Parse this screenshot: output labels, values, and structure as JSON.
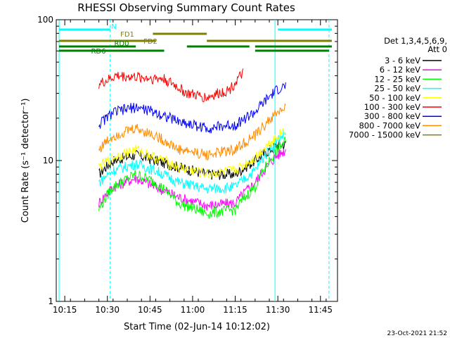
{
  "chart_data": {
    "type": "line",
    "title": "RHESSI Observing Summary Count Rates",
    "xlabel": "Start Time (02-Jun-14 10:12:02)",
    "ylabel": "Count Rate (s⁻¹ detector⁻¹)",
    "yscale": "log",
    "ylim": [
      1,
      100
    ],
    "xlim": [
      "10:12",
      "11:51"
    ],
    "x_ticks": [
      "10:15",
      "10:30",
      "10:45",
      "11:00",
      "11:15",
      "11:30",
      "11:45"
    ],
    "y_ticks": [
      "1",
      "10",
      "100"
    ],
    "legend_header": [
      "Det 1,3,4,5,6,9,",
      "Att 0"
    ],
    "legend_position": "right",
    "series": [
      {
        "name": "3 - 6 keV",
        "color": "#000000",
        "x": [
          "10:27",
          "10:32",
          "10:40",
          "10:47",
          "10:55",
          "11:05",
          "11:15",
          "11:22",
          "11:30",
          "11:33"
        ],
        "y": [
          8,
          10,
          11,
          10,
          9,
          8,
          8,
          10,
          13,
          13
        ]
      },
      {
        "name": "6 - 12 keV",
        "color": "#ff00ff",
        "x": [
          "10:27",
          "10:32",
          "10:40",
          "10:47",
          "10:55",
          "11:05",
          "11:15",
          "11:22",
          "11:30",
          "11:33"
        ],
        "y": [
          5,
          6.5,
          7.5,
          6.5,
          5.5,
          4.8,
          5,
          7,
          11,
          12
        ]
      },
      {
        "name": "12 - 25 keV",
        "color": "#00ff00",
        "x": [
          "10:27",
          "10:32",
          "10:40",
          "10:47",
          "10:55",
          "11:05",
          "11:15",
          "11:22",
          "11:30",
          "11:33"
        ],
        "y": [
          4.5,
          6.5,
          8,
          7,
          5,
          4.2,
          4.5,
          6.5,
          12,
          14
        ]
      },
      {
        "name": "25 - 50 keV",
        "color": "#00ffff",
        "x": [
          "10:27",
          "10:32",
          "10:40",
          "10:47",
          "10:55",
          "11:05",
          "11:15",
          "11:22",
          "11:30",
          "11:33"
        ],
        "y": [
          7,
          8.5,
          9.5,
          8.5,
          7,
          6.3,
          6.5,
          8.5,
          14,
          16
        ]
      },
      {
        "name": "50 - 100 keV",
        "color": "#ffff00",
        "x": [
          "10:27",
          "10:32",
          "10:40",
          "10:47",
          "10:55",
          "11:05",
          "11:15",
          "11:22",
          "11:30",
          "11:33"
        ],
        "y": [
          9,
          10.5,
          12,
          10.5,
          9,
          8,
          8.5,
          10.5,
          15,
          17
        ]
      },
      {
        "name": "100 - 300 keV",
        "color": "#ff0000",
        "x": [
          "10:27",
          "10:30",
          "10:33",
          "10:50",
          "10:58",
          "11:05",
          "11:13",
          "11:18"
        ],
        "y": [
          35,
          37,
          40,
          38,
          30,
          28,
          32,
          42
        ]
      },
      {
        "name": "300 - 800 keV",
        "color": "#0000ff",
        "x": [
          "10:27",
          "10:32",
          "10:40",
          "10:47",
          "10:55",
          "11:05",
          "11:15",
          "11:22",
          "11:30",
          "11:33"
        ],
        "y": [
          18,
          22,
          24,
          22,
          19,
          17,
          18,
          22,
          32,
          34
        ]
      },
      {
        "name": "800 - 7000 keV",
        "color": "#ff8c00",
        "x": [
          "10:27",
          "10:32",
          "10:40",
          "10:47",
          "10:55",
          "11:05",
          "11:15",
          "11:22",
          "11:30",
          "11:33"
        ],
        "y": [
          12,
          15,
          17,
          15,
          12,
          11,
          12,
          15,
          22,
          24
        ]
      },
      {
        "name": "7000 - 15000 keV",
        "color": "#808000",
        "x": [],
        "y": []
      }
    ],
    "state_bars": [
      {
        "label": "N",
        "color": "#00ffff",
        "segments": [
          [
            "10:13",
            "10:31"
          ],
          [
            "11:30",
            "11:49"
          ]
        ]
      },
      {
        "label": "FD1",
        "color": "#808000",
        "segments": [
          [
            "10:46",
            "11:05"
          ]
        ]
      },
      {
        "label": "FD2",
        "color": "#808000",
        "segments": [
          [
            "10:13",
            "10:47"
          ],
          [
            "11:05",
            "11:49"
          ]
        ]
      },
      {
        "label": "RD0",
        "color": "#008000",
        "segments": [
          [
            "10:13",
            "10:40"
          ],
          [
            "10:58",
            "11:20"
          ],
          [
            "11:22",
            "11:49"
          ]
        ]
      },
      {
        "label": "RD6",
        "color": "#008000",
        "segments": [
          [
            "10:13",
            "10:50"
          ],
          [
            "11:22",
            "11:48"
          ]
        ]
      }
    ],
    "vertical_lines": [
      {
        "x": "10:31",
        "style": "dashed",
        "color": "#00ffff"
      },
      {
        "x": "11:29",
        "style": "solid",
        "color": "#00ffff"
      },
      {
        "x": "11:48",
        "style": "dashed",
        "color": "#00ffff"
      },
      {
        "x": "10:13",
        "style": "solid",
        "color": "#00ffff"
      }
    ],
    "footer_date": "23-Oct-2021 21:52",
    "grid": false
  }
}
